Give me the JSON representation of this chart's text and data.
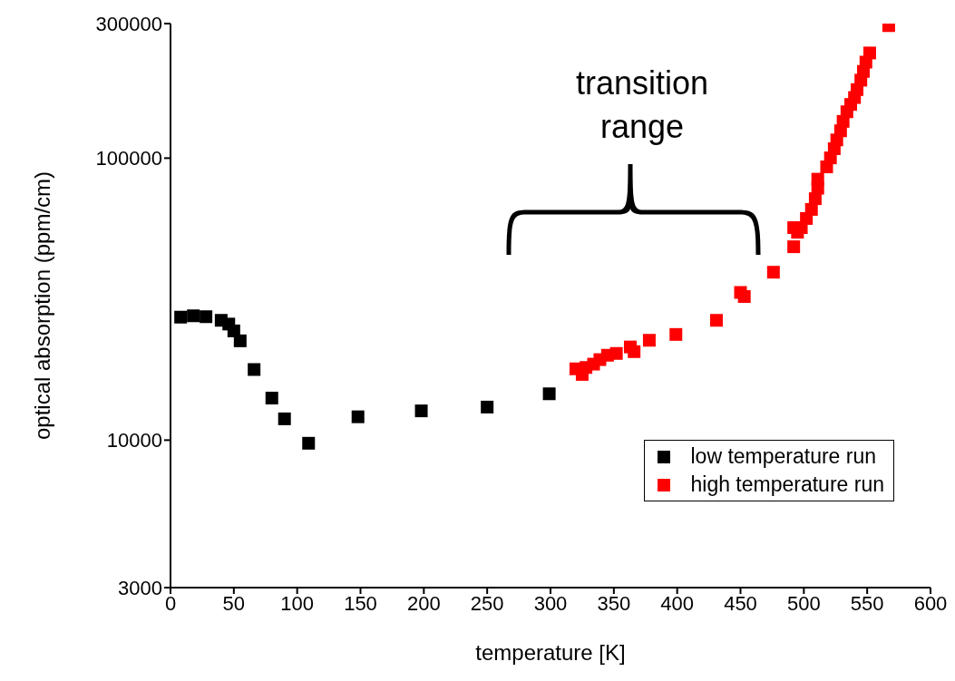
{
  "chart_data": {
    "type": "scatter",
    "xlabel": "temperature [K]",
    "ylabel": "optical absorption (ppm/cm)",
    "annotations": [
      "transition\nrange"
    ],
    "log": "y",
    "xlim": [
      0,
      600
    ],
    "xticks": [
      0,
      50,
      100,
      150,
      200,
      250,
      300,
      350,
      400,
      450,
      500,
      550,
      600
    ],
    "ylim": [
      3000,
      300000
    ],
    "yticks": [
      3000,
      10000,
      100000,
      300000
    ],
    "grid": false,
    "legend": "bottom right",
    "marker": "square",
    "series": [
      {
        "name": "low temperature run",
        "color": "#000000",
        "x": [
          8,
          18,
          28,
          40,
          46,
          50,
          55,
          66,
          80,
          90,
          109,
          148,
          198,
          250,
          299
        ],
        "values": [
          27300,
          27600,
          27400,
          26600,
          25800,
          24400,
          22500,
          17800,
          14100,
          11900,
          9750,
          12100,
          12700,
          13100,
          14600
        ]
      },
      {
        "name": "high temperature run",
        "color": "#ff0000",
        "x": [
          320,
          325,
          328,
          334,
          339,
          345,
          352,
          363,
          366,
          378,
          399,
          431,
          450,
          453,
          476,
          492,
          492,
          495,
          498,
          502,
          506,
          509,
          511,
          511,
          518,
          521,
          524,
          526,
          529,
          531,
          534,
          537,
          540,
          542,
          545,
          547,
          549,
          552,
          567
        ],
        "values": [
          17900,
          17100,
          18100,
          18600,
          19300,
          20000,
          20300,
          21400,
          20600,
          22600,
          23700,
          26600,
          33400,
          32300,
          39400,
          48500,
          56700,
          54600,
          56700,
          61100,
          65800,
          71800,
          78200,
          84200,
          93100,
          100200,
          108000,
          116000,
          125000,
          135000,
          146000,
          155000,
          164000,
          175000,
          189000,
          203000,
          219000,
          236000,
          295000
        ]
      }
    ]
  }
}
